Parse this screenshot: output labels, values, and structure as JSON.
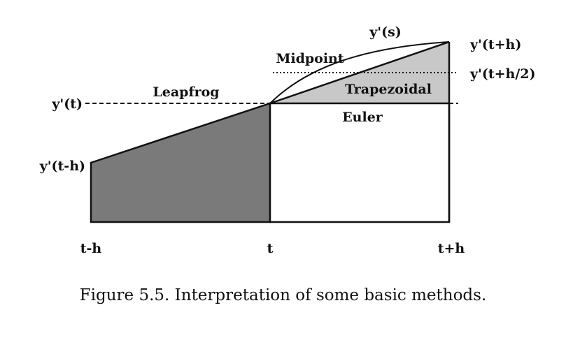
{
  "diagram": {
    "labels": {
      "y_t": "y'(t)",
      "y_t_minus_h": "y'(t-h)",
      "y_s": "y'(s)",
      "y_t_plus_h": "y'(t+h)",
      "y_t_plus_half_h": "y'(t+h/2)",
      "leapfrog": "Leapfrog",
      "midpoint": "Midpoint",
      "trapezoidal": "Trapezoidal",
      "euler": "Euler",
      "x_t_minus_h": "t-h",
      "x_t": "t",
      "x_t_plus_h": "t+h"
    },
    "colors": {
      "leapfrog_fill": "#7a7a7a",
      "trapezoidal_fill": "#c8c8c8",
      "stroke": "#111111"
    }
  },
  "caption": "Figure 5.5.  Interpretation of some basic methods."
}
